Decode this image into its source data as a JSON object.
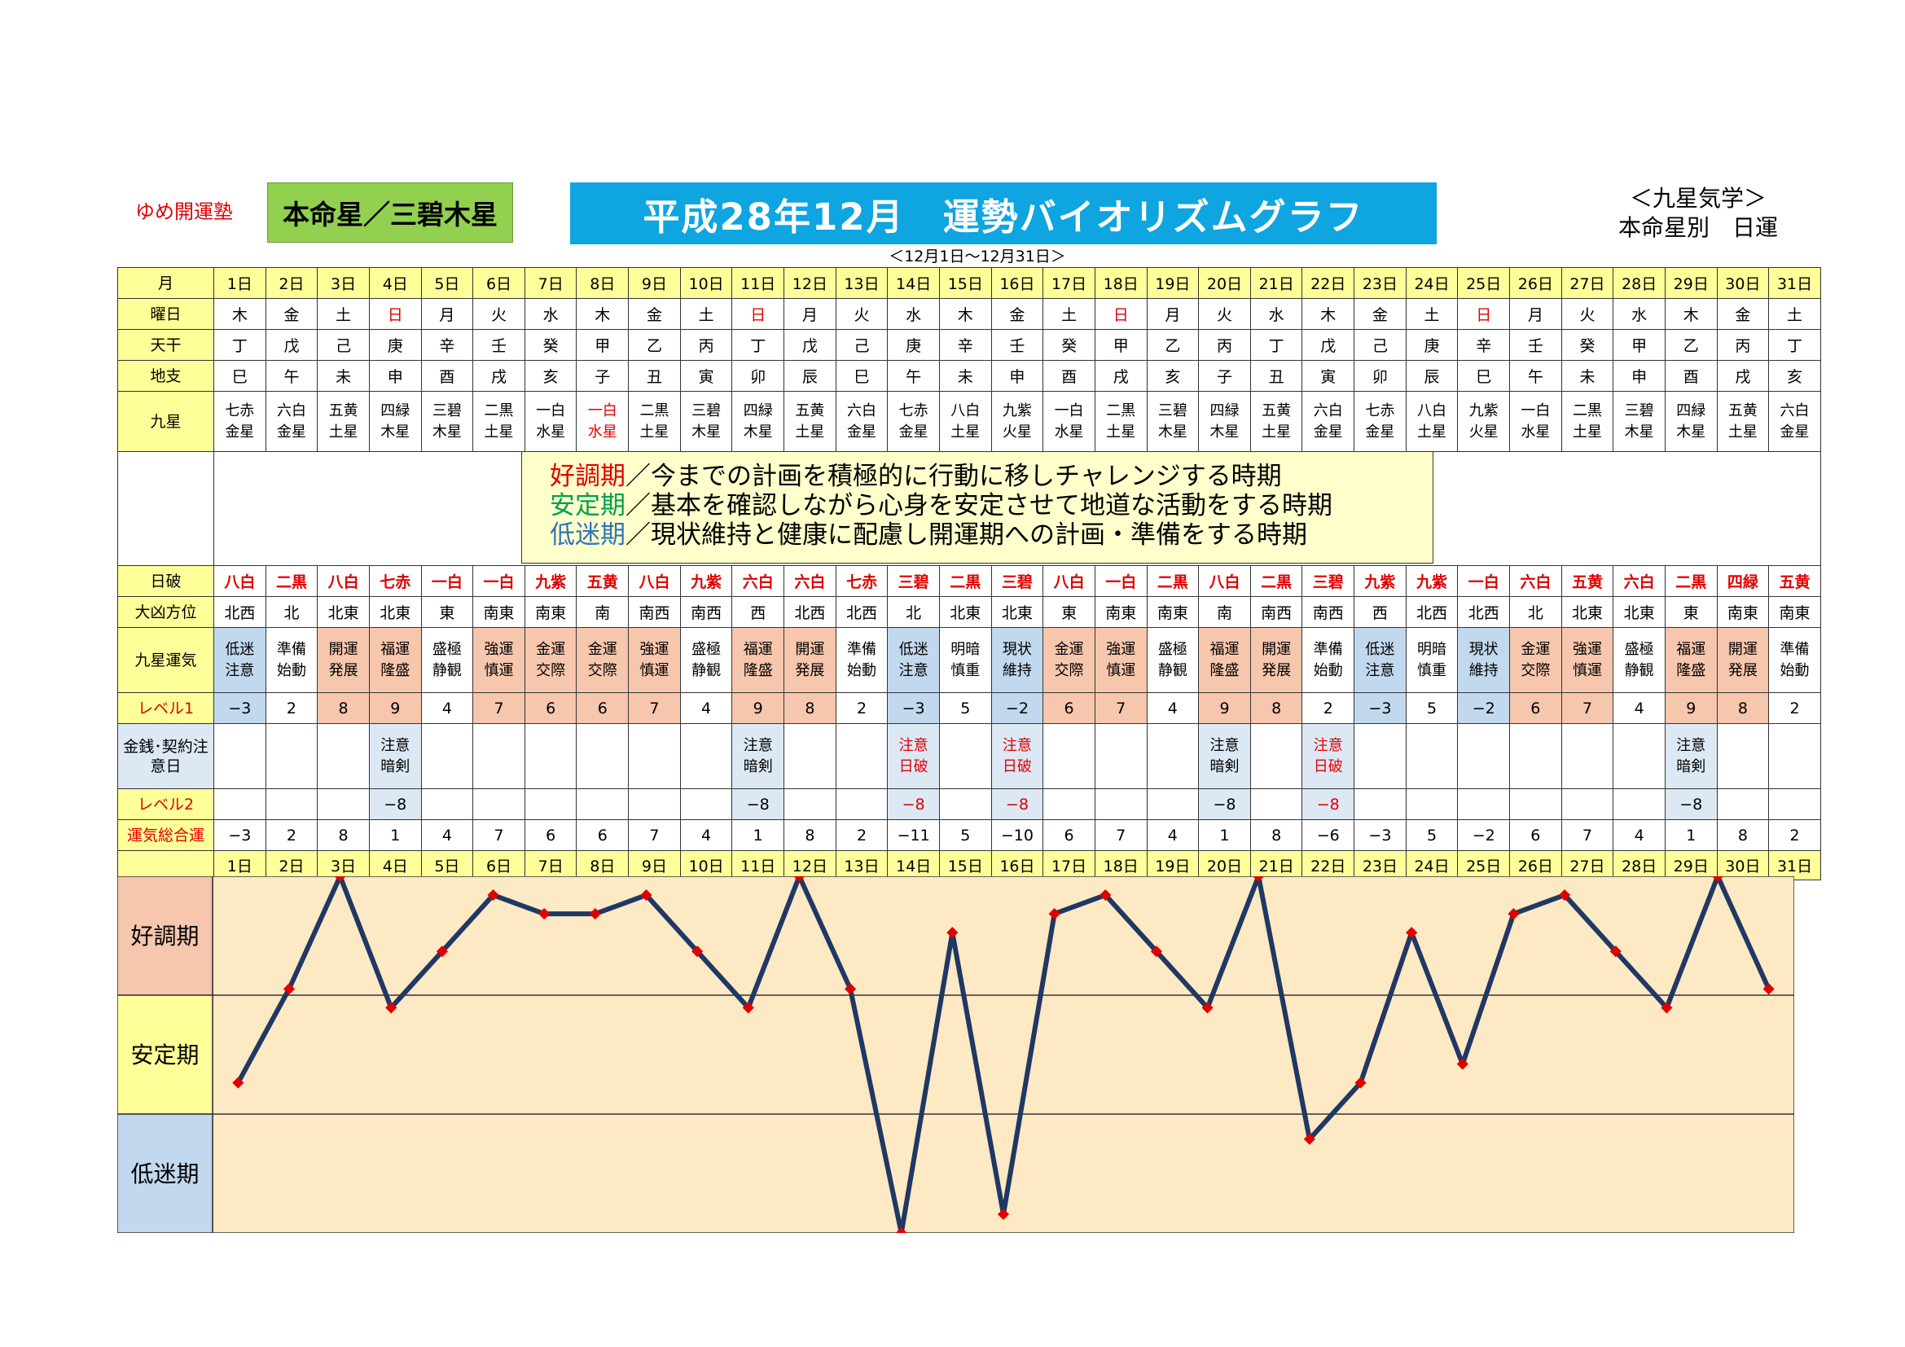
{
  "header": {
    "school": "ゆめ開運塾",
    "honmei": "本命星／三碧木星",
    "title": "平成28年12月　運勢バイオリズムグラフ",
    "range": "＜12月1日～12月31日＞",
    "kyusei_line1": "＜九星気学＞",
    "kyusei_line2": "本命星別　日運"
  },
  "rows": {
    "month": "月",
    "weekday": "曜日",
    "kan": "天干",
    "shi": "地支",
    "star": "九星",
    "hiha": "日破",
    "direction": "大凶方位",
    "luck": "九星運気",
    "level1": "レベル1",
    "caution": "金銭･契約注意日",
    "level2": "レベル2",
    "total": "運気総合運"
  },
  "days": [
    "1日",
    "2日",
    "3日",
    "4日",
    "5日",
    "6日",
    "7日",
    "8日",
    "9日",
    "10日",
    "11日",
    "12日",
    "13日",
    "14日",
    "15日",
    "16日",
    "17日",
    "18日",
    "19日",
    "20日",
    "21日",
    "22日",
    "23日",
    "24日",
    "25日",
    "26日",
    "27日",
    "28日",
    "29日",
    "30日",
    "31日"
  ],
  "weekdays": [
    "木",
    "金",
    "土",
    "日",
    "月",
    "火",
    "水",
    "木",
    "金",
    "土",
    "日",
    "月",
    "火",
    "水",
    "木",
    "金",
    "土",
    "日",
    "月",
    "火",
    "水",
    "木",
    "金",
    "土",
    "日",
    "月",
    "火",
    "水",
    "木",
    "金",
    "土"
  ],
  "kan": [
    "丁",
    "戊",
    "己",
    "庚",
    "辛",
    "壬",
    "癸",
    "甲",
    "乙",
    "丙",
    "丁",
    "戊",
    "己",
    "庚",
    "辛",
    "壬",
    "癸",
    "甲",
    "乙",
    "丙",
    "丁",
    "戊",
    "己",
    "庚",
    "辛",
    "壬",
    "癸",
    "甲",
    "乙",
    "丙",
    "丁"
  ],
  "shi": [
    "巳",
    "午",
    "未",
    "申",
    "酉",
    "戌",
    "亥",
    "子",
    "丑",
    "寅",
    "卯",
    "辰",
    "巳",
    "午",
    "未",
    "申",
    "酉",
    "戌",
    "亥",
    "子",
    "丑",
    "寅",
    "卯",
    "辰",
    "巳",
    "午",
    "未",
    "申",
    "酉",
    "戌",
    "亥"
  ],
  "stars": [
    [
      "七赤",
      "金星"
    ],
    [
      "六白",
      "金星"
    ],
    [
      "五黄",
      "土星"
    ],
    [
      "四緑",
      "木星"
    ],
    [
      "三碧",
      "木星"
    ],
    [
      "二黒",
      "土星"
    ],
    [
      "一白",
      "水星"
    ],
    [
      "一白",
      "水星"
    ],
    [
      "二黒",
      "土星"
    ],
    [
      "三碧",
      "木星"
    ],
    [
      "四緑",
      "木星"
    ],
    [
      "五黄",
      "土星"
    ],
    [
      "六白",
      "金星"
    ],
    [
      "七赤",
      "金星"
    ],
    [
      "八白",
      "土星"
    ],
    [
      "九紫",
      "火星"
    ],
    [
      "一白",
      "水星"
    ],
    [
      "二黒",
      "土星"
    ],
    [
      "三碧",
      "木星"
    ],
    [
      "四緑",
      "木星"
    ],
    [
      "五黄",
      "土星"
    ],
    [
      "六白",
      "金星"
    ],
    [
      "七赤",
      "金星"
    ],
    [
      "八白",
      "土星"
    ],
    [
      "九紫",
      "火星"
    ],
    [
      "一白",
      "水星"
    ],
    [
      "二黒",
      "土星"
    ],
    [
      "三碧",
      "木星"
    ],
    [
      "四緑",
      "木星"
    ],
    [
      "五黄",
      "土星"
    ],
    [
      "六白",
      "金星"
    ]
  ],
  "hiha": [
    "八白",
    "二黒",
    "八白",
    "七赤",
    "一白",
    "一白",
    "九紫",
    "五黄",
    "八白",
    "九紫",
    "六白",
    "六白",
    "七赤",
    "三碧",
    "二黒",
    "三碧",
    "八白",
    "一白",
    "二黒",
    "八白",
    "二黒",
    "三碧",
    "九紫",
    "九紫",
    "一白",
    "六白",
    "五黄",
    "六白",
    "二黒",
    "四緑",
    "五黄"
  ],
  "direction": [
    "北西",
    "北",
    "北東",
    "北東",
    "東",
    "南東",
    "南東",
    "南",
    "南西",
    "南西",
    "西",
    "北西",
    "北西",
    "北",
    "北東",
    "北東",
    "東",
    "南東",
    "南東",
    "南",
    "南西",
    "南西",
    "西",
    "北西",
    "北西",
    "北",
    "北東",
    "北東",
    "東",
    "南東",
    "南東"
  ],
  "luck": [
    [
      "低迷",
      "注意"
    ],
    [
      "準備",
      "始動"
    ],
    [
      "開運",
      "発展"
    ],
    [
      "福運",
      "隆盛"
    ],
    [
      "盛極",
      "静観"
    ],
    [
      "強運",
      "慎運"
    ],
    [
      "金運",
      "交際"
    ],
    [
      "金運",
      "交際"
    ],
    [
      "強運",
      "慎運"
    ],
    [
      "盛極",
      "静観"
    ],
    [
      "福運",
      "隆盛"
    ],
    [
      "開運",
      "発展"
    ],
    [
      "準備",
      "始動"
    ],
    [
      "低迷",
      "注意"
    ],
    [
      "明暗",
      "慎重"
    ],
    [
      "現状",
      "維持"
    ],
    [
      "金運",
      "交際"
    ],
    [
      "強運",
      "慎運"
    ],
    [
      "盛極",
      "静観"
    ],
    [
      "福運",
      "隆盛"
    ],
    [
      "開運",
      "発展"
    ],
    [
      "準備",
      "始動"
    ],
    [
      "低迷",
      "注意"
    ],
    [
      "明暗",
      "慎重"
    ],
    [
      "現状",
      "維持"
    ],
    [
      "金運",
      "交際"
    ],
    [
      "強運",
      "慎運"
    ],
    [
      "盛極",
      "静観"
    ],
    [
      "福運",
      "隆盛"
    ],
    [
      "開運",
      "発展"
    ],
    [
      "準備",
      "始動"
    ]
  ],
  "luck_color": [
    "bl",
    "",
    "pk",
    "pk",
    "",
    "pk",
    "pk",
    "pk",
    "pk",
    "",
    "pk",
    "pk",
    "",
    "bl",
    "",
    "bl",
    "pk",
    "pk",
    "",
    "pk",
    "pk",
    "",
    "bl",
    "",
    "bl",
    "pk",
    "pk",
    "",
    "pk",
    "pk",
    ""
  ],
  "level1": [
    "−3",
    "2",
    "8",
    "9",
    "4",
    "7",
    "6",
    "6",
    "7",
    "4",
    "9",
    "8",
    "2",
    "−3",
    "5",
    "−2",
    "6",
    "7",
    "4",
    "9",
    "8",
    "2",
    "−3",
    "5",
    "−2",
    "6",
    "7",
    "4",
    "9",
    "8",
    "2"
  ],
  "caution": [
    [],
    [],
    [],
    [
      "注意",
      "暗剣"
    ],
    [],
    [],
    [],
    [],
    [],
    [],
    [
      "注意",
      "暗剣"
    ],
    [],
    [],
    [
      "注意",
      "日破"
    ],
    [],
    [
      "注意",
      "日破"
    ],
    [],
    [],
    [],
    [
      "注意",
      "暗剣"
    ],
    [],
    [
      "注意",
      "日破"
    ],
    [],
    [],
    [],
    [],
    [],
    [],
    [
      "注意",
      "暗剣"
    ],
    [],
    []
  ],
  "caution_red": [
    false,
    false,
    false,
    false,
    false,
    false,
    false,
    false,
    false,
    false,
    false,
    false,
    false,
    true,
    false,
    true,
    false,
    false,
    false,
    false,
    false,
    true,
    false,
    false,
    false,
    false,
    false,
    false,
    false,
    false,
    false
  ],
  "level2": [
    "",
    "",
    "",
    "−8",
    "",
    "",
    "",
    "",
    "",
    "",
    "−8",
    "",
    "",
    "−8",
    "",
    "−8",
    "",
    "",
    "",
    "−8",
    "",
    "−8",
    "",
    "",
    "",
    "",
    "",
    "",
    "−8",
    "",
    ""
  ],
  "total": [
    "−3",
    "2",
    "8",
    "1",
    "4",
    "7",
    "6",
    "6",
    "7",
    "4",
    "1",
    "8",
    "2",
    "−11",
    "5",
    "−10",
    "6",
    "7",
    "4",
    "1",
    "8",
    "−6",
    "−3",
    "5",
    "−2",
    "6",
    "7",
    "4",
    "1",
    "8",
    "2"
  ],
  "legend": {
    "l1_key": "好調期",
    "l1_text": "／今までの計画を積極的に行動に移しチャレンジする時期",
    "l2_key": "安定期",
    "l2_text": "／基本を確認しながら心身を安定させて地道な活動をする時期",
    "l3_key": "低迷期",
    "l3_text": "／現状維持と健康に配慮し開運期への計画・準備をする時期"
  },
  "colors": {
    "good": "#e00000",
    "stable": "#00a050",
    "low": "#2e75b6",
    "line": "#1f3864",
    "point": "#e00000",
    "chart_bg": "#fde9c4"
  },
  "chart_data": {
    "type": "line",
    "x": [
      1,
      2,
      3,
      4,
      5,
      6,
      7,
      8,
      9,
      10,
      11,
      12,
      13,
      14,
      15,
      16,
      17,
      18,
      19,
      20,
      21,
      22,
      23,
      24,
      25,
      26,
      27,
      28,
      29,
      30,
      31
    ],
    "bands": [
      "好調期",
      "安定期",
      "低迷期"
    ],
    "series": [
      {
        "values": [
          -3,
          2,
          8,
          1,
          4,
          7,
          6,
          6,
          7,
          4,
          1,
          8,
          2,
          -11,
          5,
          -10,
          6,
          7,
          4,
          1,
          8,
          -6,
          -3,
          5,
          -2,
          6,
          7,
          4,
          1,
          8,
          2
        ]
      }
    ],
    "ylim": [
      -11,
      8
    ]
  }
}
